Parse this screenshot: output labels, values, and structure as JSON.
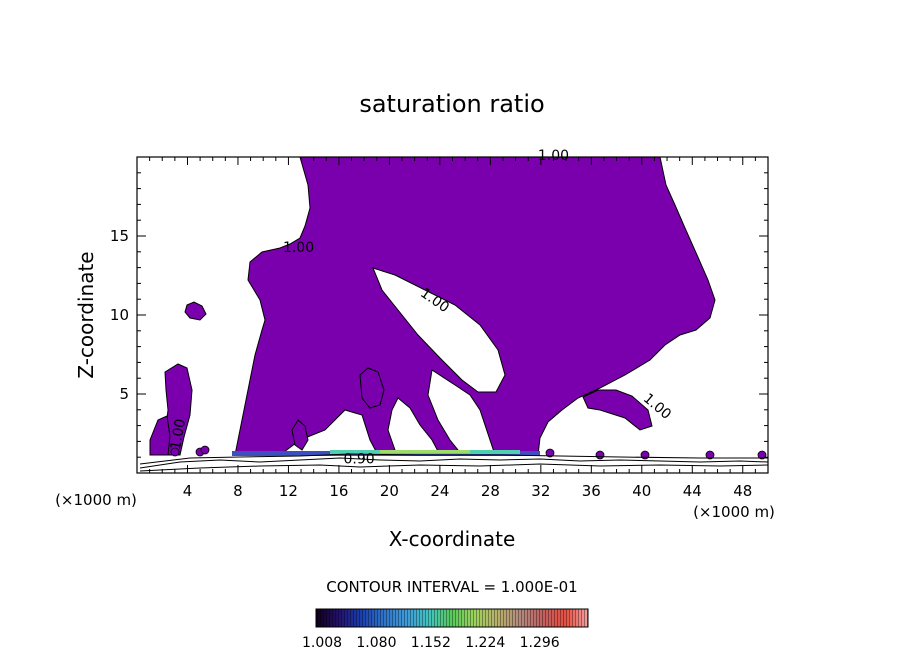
{
  "chart_data": {
    "type": "contour",
    "title": "saturation ratio",
    "xlabel": "X-coordinate",
    "ylabel": "Z-coordinate",
    "x_unit": "(×1000 m)",
    "z_unit": "(×1000 m)",
    "xlim": [
      0,
      50
    ],
    "ylim": [
      0,
      20
    ],
    "x_ticks": [
      4,
      8,
      12,
      16,
      20,
      24,
      28,
      32,
      36,
      40,
      44,
      48
    ],
    "y_ticks": [
      5,
      10,
      15
    ],
    "contour_interval_text": "CONTOUR INTERVAL = 1.000E-01",
    "contour_labels": [
      {
        "text": "1.00",
        "x": 33.0,
        "z": 19.8,
        "rot": 0
      },
      {
        "text": "1.00",
        "x": 12.8,
        "z": 14.0,
        "rot": 0
      },
      {
        "text": "1.00",
        "x": 23.4,
        "z": 10.7,
        "rot": 35
      },
      {
        "text": "1.00",
        "x": 41.0,
        "z": 4.0,
        "rot": 40
      },
      {
        "text": "1.00",
        "x": 3.6,
        "z": 2.4,
        "rot": -80
      },
      {
        "text": "0.90",
        "x": 17.6,
        "z": 0.6,
        "rot": 0
      }
    ],
    "colorbar": {
      "ticks": [
        1.008,
        1.08,
        1.152,
        1.224,
        1.296
      ],
      "tick_labels": [
        "1.008",
        "1.080",
        "1.152",
        "1.224",
        "1.296"
      ],
      "min": 1.0,
      "max": 1.36,
      "colors": [
        "#100018",
        "#23106b",
        "#1a3fae",
        "#2f74c8",
        "#3f9ad8",
        "#42c4bd",
        "#58c95a",
        "#9dd25e",
        "#b8b06a",
        "#b38a7e",
        "#c06060",
        "#e84f40",
        "#f1a0a0"
      ]
    },
    "fill_color": "#7a00ae"
  }
}
